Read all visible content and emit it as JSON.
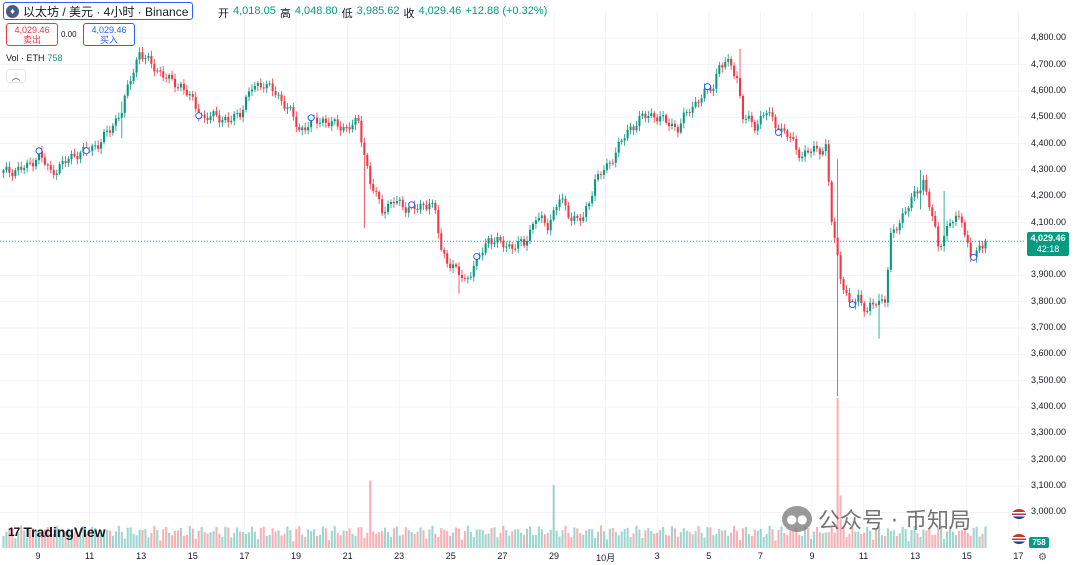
{
  "header": {
    "symbol": "以太坊 / 美元 · 4小时 · Binance",
    "coin_icon": "♦",
    "ohlc": {
      "open_label": "开",
      "open": "4,018.05",
      "high_label": "高",
      "high": "4,048.80",
      "low_label": "低",
      "low": "3,985.62",
      "close_label": "收",
      "close": "4,029.46",
      "change": "+12.88 (+0.32%)"
    }
  },
  "trade": {
    "sell_price": "4,029.46",
    "sell_label": "卖出",
    "spread": "0.00",
    "buy_price": "4,029.46",
    "buy_label": "买入"
  },
  "volume": {
    "label": "Vol · ETH",
    "value": "758",
    "badge": "758"
  },
  "current": {
    "price": "4,029.46",
    "countdown": "42:18"
  },
  "price_scale": [
    "4,800.00",
    "4,700.00",
    "4,600.00",
    "4,500.00",
    "4,400.00",
    "4,300.00",
    "4,200.00",
    "4,100.00",
    "3,900.00",
    "3,800.00",
    "3,700.00",
    "3,600.00",
    "3,500.00",
    "3,400.00",
    "3,300.00",
    "3,200.00",
    "3,100.00",
    "3,000.00"
  ],
  "time_axis": [
    "9",
    "11",
    "13",
    "15",
    "17",
    "19",
    "21",
    "23",
    "25",
    "27",
    "29",
    "10月",
    "3",
    "5",
    "7",
    "9",
    "11",
    "13",
    "15",
    "17"
  ],
  "logo": {
    "text": "TradingView",
    "mark": "17"
  },
  "watermark": {
    "text": "公众号 · 币知局",
    "icon": "wechat-icon"
  },
  "colors": {
    "up": "#089981",
    "down": "#f23645",
    "accent": "#2962ff",
    "grid": "#f0f3fa"
  },
  "chart_data": {
    "type": "candlestick",
    "interval": "4h",
    "ylim": [
      2960,
      4850
    ],
    "current_price": 4029.46,
    "waypoints": [
      [
        0,
        4290
      ],
      [
        4,
        4300
      ],
      [
        8,
        4310
      ],
      [
        12,
        4360
      ],
      [
        16,
        4290
      ],
      [
        20,
        4320
      ],
      [
        24,
        4360
      ],
      [
        28,
        4370
      ],
      [
        32,
        4400
      ],
      [
        36,
        4450
      ],
      [
        40,
        4530
      ],
      [
        44,
        4680
      ],
      [
        46,
        4750
      ],
      [
        48,
        4720
      ],
      [
        52,
        4680
      ],
      [
        56,
        4640
      ],
      [
        60,
        4620
      ],
      [
        64,
        4560
      ],
      [
        68,
        4490
      ],
      [
        72,
        4510
      ],
      [
        76,
        4480
      ],
      [
        80,
        4520
      ],
      [
        84,
        4610
      ],
      [
        88,
        4630
      ],
      [
        92,
        4590
      ],
      [
        96,
        4540
      ],
      [
        100,
        4450
      ],
      [
        104,
        4480
      ],
      [
        108,
        4490
      ],
      [
        112,
        4470
      ],
      [
        116,
        4460
      ],
      [
        120,
        4480
      ],
      [
        124,
        4250
      ],
      [
        128,
        4150
      ],
      [
        132,
        4180
      ],
      [
        136,
        4160
      ],
      [
        140,
        4150
      ],
      [
        144,
        4180
      ],
      [
        146,
        4140
      ],
      [
        148,
        3990
      ],
      [
        152,
        3930
      ],
      [
        156,
        3880
      ],
      [
        160,
        3950
      ],
      [
        164,
        4040
      ],
      [
        168,
        4020
      ],
      [
        172,
        4010
      ],
      [
        176,
        4020
      ],
      [
        180,
        4120
      ],
      [
        184,
        4090
      ],
      [
        188,
        4190
      ],
      [
        192,
        4120
      ],
      [
        196,
        4110
      ],
      [
        200,
        4260
      ],
      [
        204,
        4310
      ],
      [
        208,
        4390
      ],
      [
        212,
        4460
      ],
      [
        216,
        4500
      ],
      [
        220,
        4510
      ],
      [
        224,
        4480
      ],
      [
        228,
        4460
      ],
      [
        232,
        4530
      ],
      [
        236,
        4580
      ],
      [
        240,
        4620
      ],
      [
        242,
        4700
      ],
      [
        246,
        4700
      ],
      [
        248,
        4650
      ],
      [
        250,
        4500
      ],
      [
        254,
        4470
      ],
      [
        258,
        4520
      ],
      [
        262,
        4460
      ],
      [
        266,
        4420
      ],
      [
        270,
        4350
      ],
      [
        274,
        4380
      ],
      [
        278,
        4380
      ],
      [
        280,
        4110
      ],
      [
        283,
        3900
      ],
      [
        286,
        3780
      ],
      [
        289,
        3820
      ],
      [
        292,
        3760
      ],
      [
        295,
        3800
      ],
      [
        298,
        3810
      ],
      [
        300,
        4040
      ],
      [
        304,
        4130
      ],
      [
        308,
        4200
      ],
      [
        311,
        4260
      ],
      [
        314,
        4120
      ],
      [
        316,
        4010
      ],
      [
        320,
        4100
      ],
      [
        324,
        4120
      ],
      [
        327,
        3960
      ],
      [
        330,
        4000
      ],
      [
        332,
        4029
      ]
    ],
    "special_candles": [
      {
        "index": 40,
        "high": 4560,
        "low": 4420
      },
      {
        "index": 122,
        "high": 4280,
        "low": 4080
      },
      {
        "index": 154,
        "high": 3940,
        "low": 3830
      },
      {
        "index": 249,
        "high": 4760,
        "low": 4600
      },
      {
        "index": 282,
        "high": 4340,
        "low": 3440
      },
      {
        "index": 296,
        "high": 3830,
        "low": 3660
      },
      {
        "index": 310,
        "high": 4300,
        "low": 4150
      },
      {
        "index": 318,
        "high": 4220,
        "low": 3990
      }
    ],
    "volume_spikes": [
      {
        "index": 124,
        "value": 0.45
      },
      {
        "index": 186,
        "value": 0.42
      },
      {
        "index": 282,
        "value": 1.0
      },
      {
        "index": 283,
        "value": 0.35
      }
    ]
  }
}
